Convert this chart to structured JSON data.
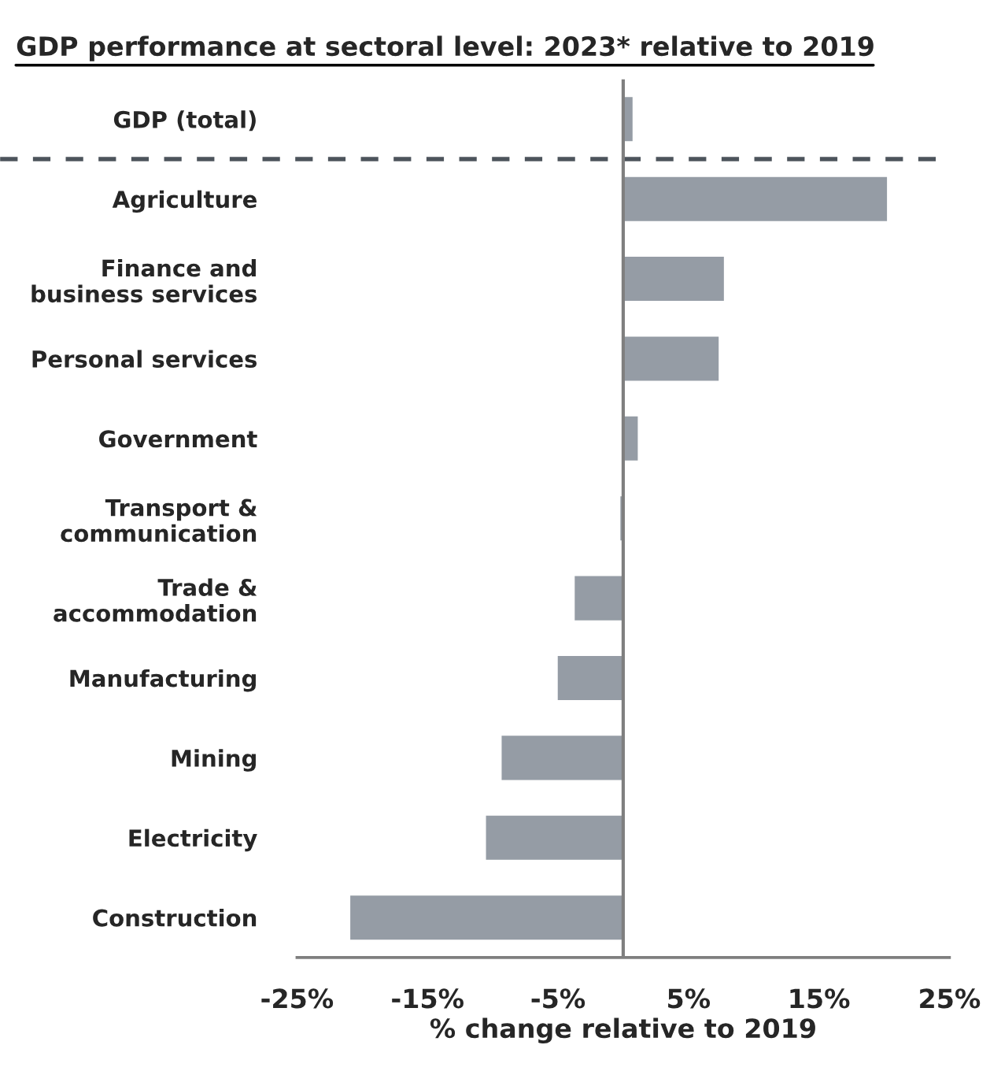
{
  "chart_data": {
    "type": "bar",
    "orientation": "horizontal",
    "title": "GDP performance at sectoral level: 2023* relative to 2019",
    "xlabel": "% change relative to 2019",
    "categories": [
      "GDP (total)",
      "Agriculture",
      "Finance and\nbusiness services",
      "Personal services",
      "Government",
      "Transport &\ncommunication",
      "Trade &\naccommodation",
      "Manufacturing",
      "Mining",
      "Electricity",
      "Construction"
    ],
    "values": [
      0.8,
      20.3,
      7.8,
      7.4,
      1.2,
      -0.3,
      -3.8,
      -5.1,
      -9.4,
      -10.6,
      -21.0
    ],
    "color": "#959ca5",
    "xlim": [
      -25,
      25
    ],
    "xticks": [
      {
        "value": -25,
        "label": "-25%"
      },
      {
        "value": -15,
        "label": "-15%"
      },
      {
        "value": -5,
        "label": "-5%"
      },
      {
        "value": 5,
        "label": "5%"
      },
      {
        "value": 15,
        "label": "15%"
      },
      {
        "value": 25,
        "label": "25%"
      }
    ],
    "grid": false,
    "legend": false
  }
}
